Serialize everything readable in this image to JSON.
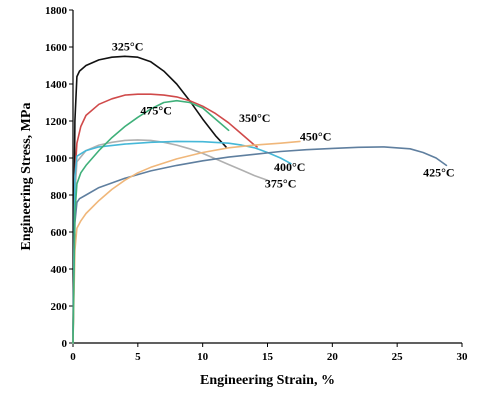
{
  "chart_data": {
    "type": "line",
    "title": "",
    "xlabel": "Engineering Strain, %",
    "ylabel": "Engineering  Stress, MPa",
    "xlim": [
      0,
      30
    ],
    "ylim": [
      0,
      1800
    ],
    "xticks": [
      0,
      5,
      10,
      15,
      20,
      25,
      30
    ],
    "yticks": [
      0,
      200,
      400,
      600,
      800,
      1000,
      1200,
      1400,
      1600,
      1800
    ],
    "grid": false,
    "legend": "none",
    "series": [
      {
        "name": "325°C",
        "color": "#111111",
        "x": [
          0,
          0.15,
          0.3,
          0.5,
          1,
          2,
          3,
          4,
          5,
          6,
          7,
          8,
          9,
          10,
          11,
          11.8
        ],
        "y": [
          0,
          1200,
          1440,
          1470,
          1500,
          1530,
          1545,
          1550,
          1545,
          1520,
          1470,
          1400,
          1310,
          1210,
          1120,
          1060
        ]
      },
      {
        "name": "350°C",
        "color": "#d04a4a",
        "x": [
          0,
          0.15,
          0.3,
          0.6,
          1,
          2,
          3,
          4,
          5,
          6,
          7,
          8,
          9,
          10,
          11,
          12,
          13,
          14,
          14.2
        ],
        "y": [
          0,
          900,
          1080,
          1170,
          1230,
          1290,
          1320,
          1340,
          1345,
          1345,
          1340,
          1330,
          1310,
          1280,
          1240,
          1190,
          1130,
          1070,
          1060
        ]
      },
      {
        "name": "375°C",
        "color": "#b0b0b0",
        "x": [
          0,
          0.15,
          0.3,
          1,
          2,
          3,
          4,
          5,
          6,
          7,
          8,
          9,
          10,
          11,
          12,
          13,
          14,
          15
        ],
        "y": [
          0,
          800,
          980,
          1040,
          1070,
          1085,
          1095,
          1098,
          1095,
          1085,
          1070,
          1050,
          1025,
          995,
          965,
          935,
          905,
          880
        ]
      },
      {
        "name": "400°C",
        "color": "#46b8d8",
        "x": [
          0,
          0.15,
          0.3,
          1,
          2,
          4,
          6,
          8,
          10,
          12,
          13,
          14,
          15,
          16,
          16.8
        ],
        "y": [
          0,
          900,
          1010,
          1040,
          1060,
          1075,
          1085,
          1090,
          1088,
          1080,
          1070,
          1055,
          1030,
          1000,
          970
        ]
      },
      {
        "name": "425°C",
        "color": "#5f7f9f",
        "x": [
          0,
          0.15,
          0.3,
          0.5,
          1,
          2,
          4,
          6,
          8,
          10,
          12,
          14,
          16,
          18,
          20,
          22,
          24,
          26,
          27,
          28,
          28.8
        ],
        "y": [
          0,
          650,
          760,
          780,
          800,
          840,
          890,
          930,
          960,
          985,
          1005,
          1020,
          1035,
          1045,
          1052,
          1058,
          1060,
          1050,
          1030,
          1000,
          960
        ]
      },
      {
        "name": "450°C",
        "color": "#f0b77a",
        "x": [
          0,
          0.15,
          0.3,
          0.6,
          1,
          2,
          3,
          4,
          5,
          6,
          8,
          10,
          12,
          14,
          16,
          17.5
        ],
        "y": [
          0,
          500,
          620,
          660,
          700,
          770,
          830,
          880,
          920,
          950,
          995,
          1030,
          1055,
          1070,
          1080,
          1090
        ]
      },
      {
        "name": "475°C",
        "color": "#3fb07a",
        "x": [
          0,
          0.15,
          0.3,
          0.6,
          1,
          2,
          3,
          4,
          5,
          6,
          7,
          8,
          9,
          10,
          11,
          12
        ],
        "y": [
          0,
          700,
          860,
          920,
          960,
          1040,
          1110,
          1170,
          1220,
          1265,
          1300,
          1310,
          1300,
          1270,
          1210,
          1150
        ]
      }
    ],
    "annotations": [
      {
        "text": "325°C",
        "series": "325°C",
        "x": 3.0,
        "y": 1580
      },
      {
        "text": "350°C",
        "series": "350°C",
        "x": 12.8,
        "y": 1195
      },
      {
        "text": "375°C",
        "series": "375°C",
        "x": 14.8,
        "y": 840
      },
      {
        "text": "400°C",
        "series": "400°C",
        "x": 15.5,
        "y": 930
      },
      {
        "text": "425°C",
        "series": "425°C",
        "x": 27.0,
        "y": 900
      },
      {
        "text": "450°C",
        "series": "450°C",
        "x": 17.5,
        "y": 1095
      },
      {
        "text": "475°C",
        "series": "475°C",
        "x": 5.2,
        "y": 1235
      }
    ]
  }
}
